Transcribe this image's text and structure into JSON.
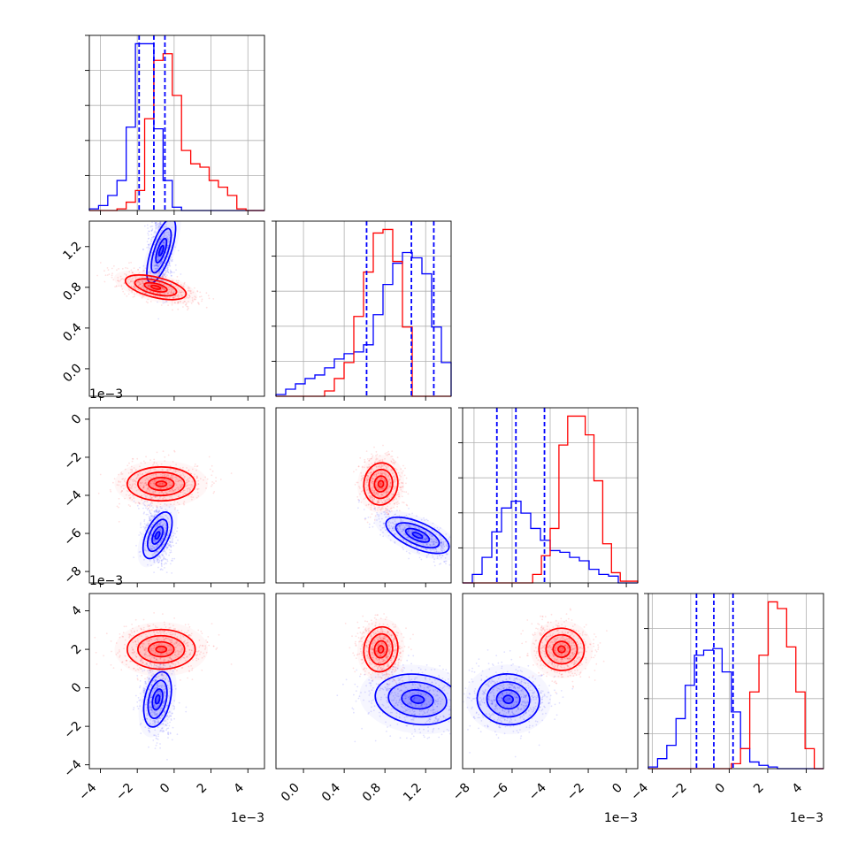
{
  "chart_data": {
    "type": "corner",
    "series": [
      {
        "name": "",
        "color": "#0000ff"
      },
      {
        "name": "",
        "color": "#ff0000"
      }
    ],
    "params": [
      {
        "range": [
          -0.0046,
          0.0049
        ],
        "ticks": [
          -4,
          -2,
          0,
          2,
          4
        ],
        "tick_labels": [
          "−4",
          "−2",
          "0",
          "2",
          "4"
        ],
        "offset": "1e−3"
      },
      {
        "range": [
          -0.27,
          1.45
        ],
        "ticks": [
          0.0,
          0.4,
          0.8,
          1.2
        ],
        "tick_labels": [
          "0.0",
          "0.4",
          "0.8",
          "1.2"
        ],
        "offset": ""
      },
      {
        "range": [
          -0.0086,
          0.0006
        ],
        "ticks": [
          -8,
          -6,
          -4,
          -2,
          0
        ],
        "tick_labels": [
          "−8",
          "−6",
          "−4",
          "−2",
          "0"
        ],
        "offset": "1e−3"
      },
      {
        "range": [
          -0.0042,
          0.0049
        ],
        "ticks": [
          -4,
          -2,
          0,
          2,
          4
        ],
        "tick_labels": [
          "−4",
          "−2",
          "0",
          "2",
          "4"
        ],
        "offset": "1e−3"
      }
    ],
    "quantile_lines": [
      [
        -0.0019,
        -0.0011,
        -0.0005
      ],
      [
        0.62,
        1.06,
        1.28
      ],
      [
        -0.0068,
        -0.0058,
        -0.0043
      ],
      [
        -0.0017,
        -0.0008,
        0.0002
      ]
    ],
    "histograms": [
      {
        "param": 0,
        "blue": [
          1,
          3,
          9,
          18,
          50,
          100,
          100,
          49,
          18,
          2,
          0,
          0,
          0,
          0,
          0,
          0,
          0,
          0,
          0
        ],
        "red": [
          0,
          0,
          0,
          1,
          5,
          12,
          55,
          90,
          94,
          69,
          36,
          28,
          26,
          18,
          14,
          9,
          1,
          0,
          0
        ]
      },
      {
        "param": 1,
        "blue": [
          1,
          4,
          7,
          10,
          12,
          16,
          21,
          24,
          25,
          29,
          46,
          63,
          75,
          81,
          78,
          69,
          39,
          19
        ],
        "red": [
          0,
          0,
          0,
          0,
          0,
          3,
          10,
          19,
          45,
          70,
          92,
          94,
          76,
          39,
          0,
          0,
          0,
          0
        ]
      },
      {
        "param": 2,
        "blue": [
          0,
          5,
          15,
          30,
          44,
          48,
          41,
          32,
          25,
          19,
          18,
          15,
          13,
          8,
          5,
          4,
          0,
          0
        ],
        "red": [
          0,
          0,
          0,
          0,
          0,
          0,
          0,
          0,
          5,
          16,
          32,
          81,
          98,
          98,
          87,
          60,
          23,
          6,
          1,
          1
        ]
      },
      {
        "param": 3,
        "blue": [
          1,
          6,
          14,
          30,
          50,
          68,
          71,
          72,
          58,
          34,
          12,
          4,
          2,
          1,
          0,
          0,
          0,
          0,
          0
        ],
        "red": [
          0,
          0,
          0,
          0,
          0,
          0,
          0,
          0,
          0,
          3,
          12,
          46,
          68,
          100,
          96,
          73,
          46,
          12,
          0
        ]
      }
    ],
    "contours": [
      {
        "x": 0,
        "y": 1,
        "blue_center": [
          -0.0007,
          1.16
        ],
        "red_center": [
          -0.001,
          0.8
        ]
      },
      {
        "x": 0,
        "y": 2,
        "blue_center": [
          -0.0009,
          -0.0061
        ],
        "red_center": [
          -0.0007,
          -0.0034
        ]
      },
      {
        "x": 1,
        "y": 2,
        "blue_center": [
          1.12,
          -0.0061
        ],
        "red_center": [
          0.76,
          -0.0034
        ]
      },
      {
        "x": 0,
        "y": 3,
        "blue_center": [
          -0.0009,
          -0.0006
        ],
        "red_center": [
          -0.0007,
          0.002
        ]
      },
      {
        "x": 1,
        "y": 3,
        "blue_center": [
          1.12,
          -0.0006
        ],
        "red_center": [
          0.76,
          0.002
        ]
      },
      {
        "x": 2,
        "y": 3,
        "blue_center": [
          -0.0062,
          -0.0006
        ],
        "red_center": [
          -0.0034,
          0.002
        ]
      }
    ],
    "grid": true,
    "legend": "none"
  },
  "offsets": {
    "y_row1": "1e−3",
    "y_row2": "1e−3",
    "x_col0": "1e−3",
    "x_col2": "1e−3",
    "x_col3": "1e−3"
  }
}
